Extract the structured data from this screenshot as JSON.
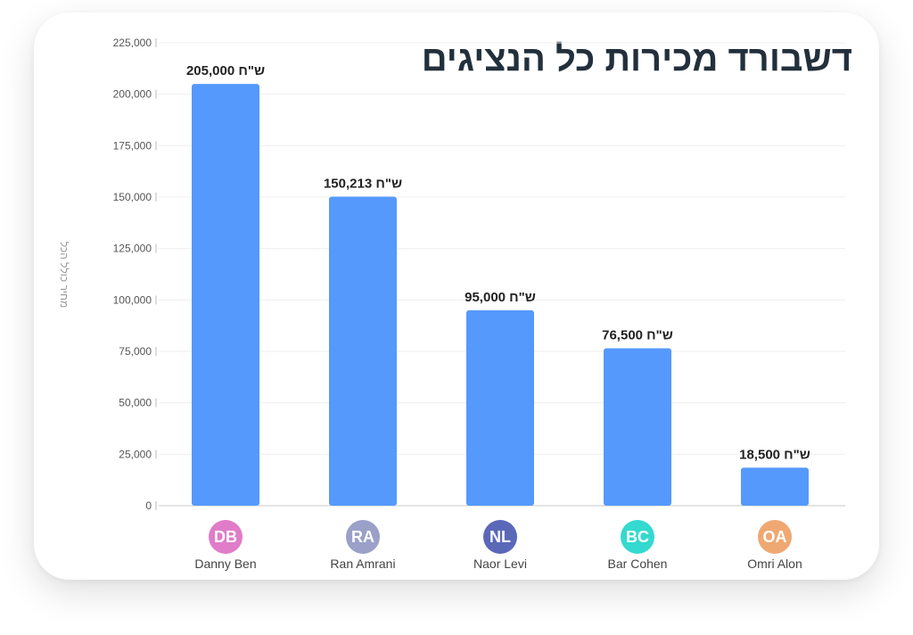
{
  "chart_data": {
    "type": "bar",
    "title": "דשבורד מכירות כל הנציגים",
    "ylabel": "מחיר כולל הכל",
    "ylim": [
      0,
      225000
    ],
    "yticks": [
      "0",
      "25,000",
      "50,000",
      "75,000",
      "100,000",
      "125,000",
      "150,000",
      "175,000",
      "200,000",
      "225,000"
    ],
    "ytick_values": [
      0,
      25000,
      50000,
      75000,
      100000,
      125000,
      150000,
      175000,
      200000,
      225000
    ],
    "grid": true,
    "bar_color": "#5599fc",
    "categories": [
      {
        "name": "Danny Ben",
        "initials": "DB",
        "badge_color": "#e07cc8",
        "value": 205000,
        "label": "205,000 ש\"ח"
      },
      {
        "name": "Ran Amrani",
        "initials": "RA",
        "badge_color": "#9aa0c8",
        "value": 150213,
        "label": "150,213 ש\"ח"
      },
      {
        "name": "Naor Levi",
        "initials": "NL",
        "badge_color": "#5b68b8",
        "value": 95000,
        "label": "95,000 ש\"ח"
      },
      {
        "name": "Bar Cohen",
        "initials": "BC",
        "badge_color": "#34d9cf",
        "value": 76500,
        "label": "76,500 ש\"ח"
      },
      {
        "name": "Omri Alon",
        "initials": "OA",
        "badge_color": "#f0a872",
        "value": 18500,
        "label": "18,500 ש\"ח"
      }
    ]
  }
}
